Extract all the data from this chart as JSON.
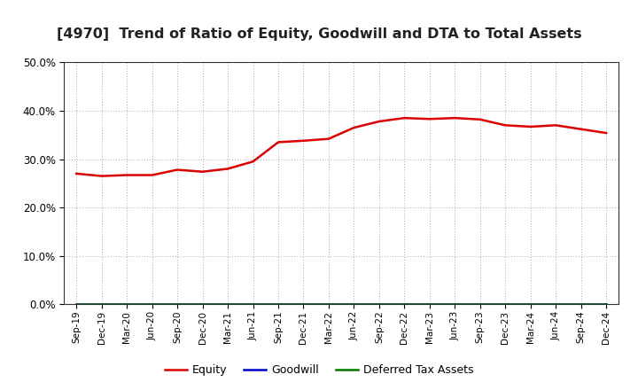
{
  "title": "[4970]  Trend of Ratio of Equity, Goodwill and DTA to Total Assets",
  "x_labels": [
    "Sep-19",
    "Dec-19",
    "Mar-20",
    "Jun-20",
    "Sep-20",
    "Dec-20",
    "Mar-21",
    "Jun-21",
    "Sep-21",
    "Dec-21",
    "Mar-22",
    "Jun-22",
    "Sep-22",
    "Dec-22",
    "Mar-23",
    "Jun-23",
    "Sep-23",
    "Dec-23",
    "Mar-24",
    "Jun-24",
    "Sep-24",
    "Dec-24"
  ],
  "equity": [
    0.27,
    0.265,
    0.267,
    0.267,
    0.278,
    0.274,
    0.28,
    0.295,
    0.335,
    0.338,
    0.342,
    0.365,
    0.378,
    0.385,
    0.383,
    0.385,
    0.382,
    0.37,
    0.367,
    0.37,
    0.362,
    0.354
  ],
  "goodwill": [
    0.0,
    0.0,
    0.0,
    0.0,
    0.0,
    0.0,
    0.0,
    0.0,
    0.0,
    0.0,
    0.0,
    0.0,
    0.0,
    0.0,
    0.0,
    0.0,
    0.0,
    0.0,
    0.0,
    0.0,
    0.0,
    0.0
  ],
  "dta": [
    0.0,
    0.0,
    0.0,
    0.0,
    0.0,
    0.0,
    0.0,
    0.0,
    0.0,
    0.0,
    0.0,
    0.0,
    0.0,
    0.0,
    0.0,
    0.0,
    0.0,
    0.0,
    0.0,
    0.0,
    0.0,
    0.0
  ],
  "equity_color": "#dd0000",
  "goodwill_color": "#0000cc",
  "dta_color": "#007700",
  "ylim": [
    0.0,
    0.5
  ],
  "yticks": [
    0.0,
    0.1,
    0.2,
    0.3,
    0.4,
    0.5
  ],
  "background_color": "#ffffff",
  "grid_color": "#aaaaaa",
  "title_fontsize": 11.5,
  "legend_labels": [
    "Equity",
    "Goodwill",
    "Deferred Tax Assets"
  ]
}
